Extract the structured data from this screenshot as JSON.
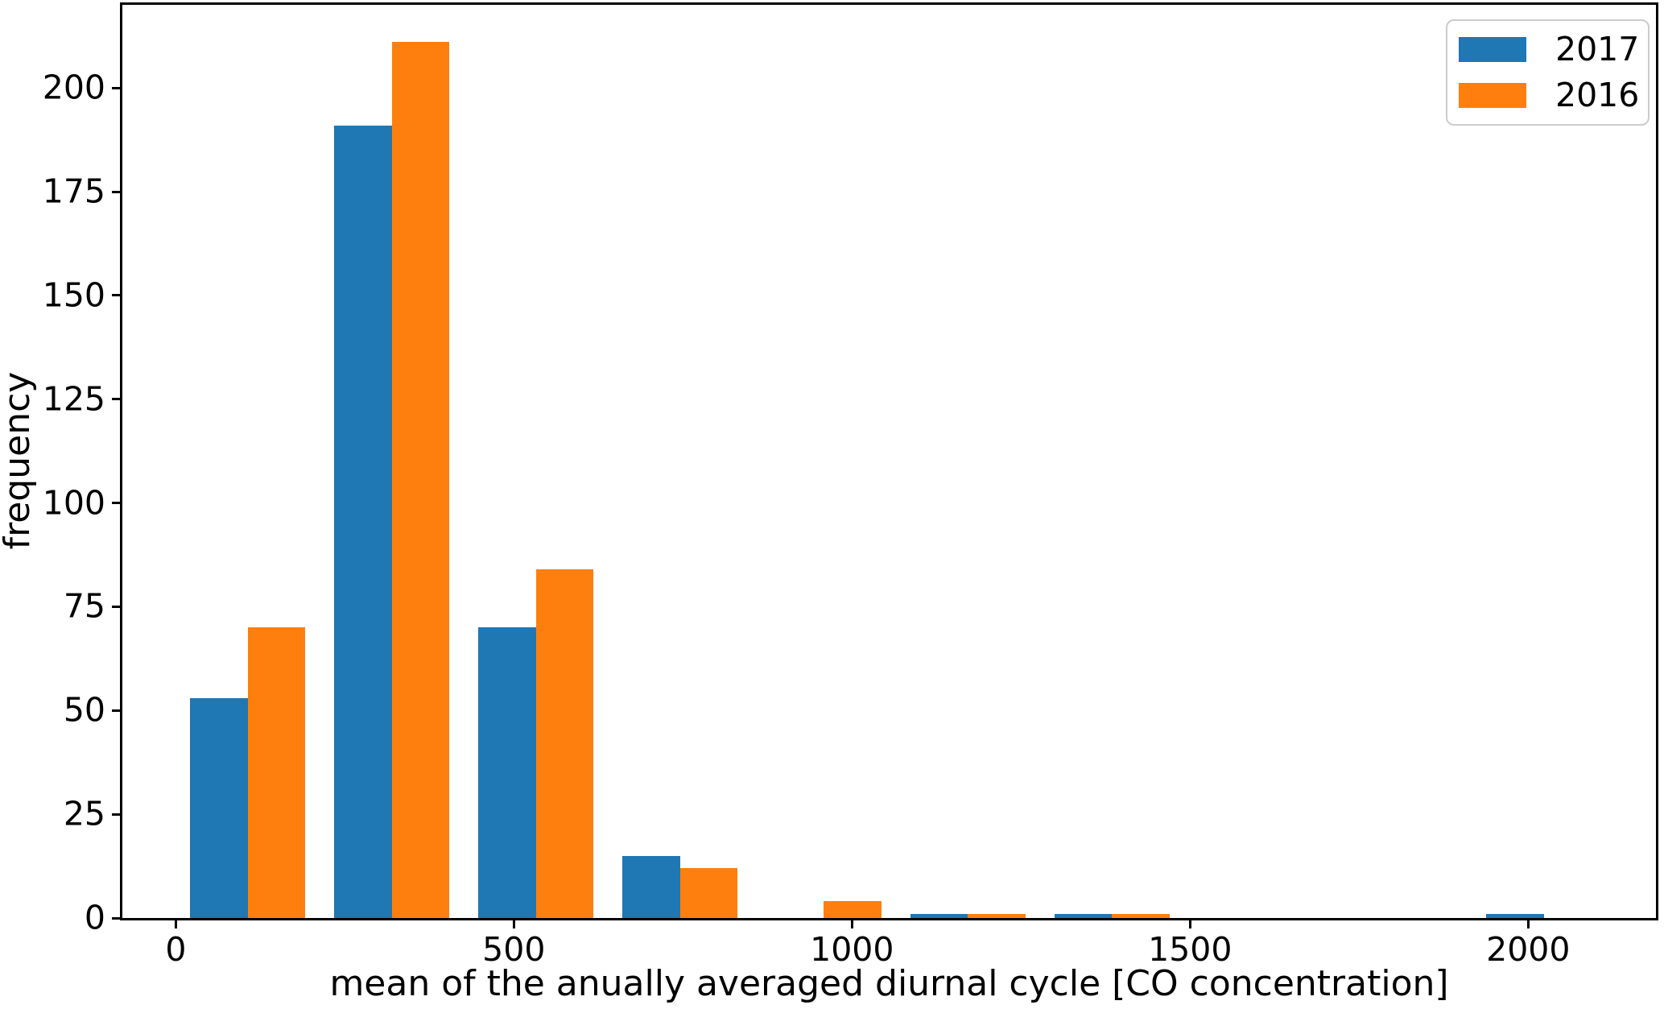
{
  "chart_data": {
    "type": "bar",
    "variant": "grouped-histogram",
    "title": "",
    "xlabel": "mean of the anually averaged diurnal cycle [CO concentration]",
    "ylabel": "frequency",
    "bin_edges": [
      0,
      213,
      426,
      639,
      852,
      1065,
      1278,
      1491,
      1704,
      1917,
      2130
    ],
    "series": [
      {
        "name": "2017",
        "color": "#1f77b4",
        "values": [
          53,
          191,
          70,
          15,
          0,
          1,
          1,
          0,
          0,
          1
        ]
      },
      {
        "name": "2016",
        "color": "#ff7f0e",
        "values": [
          70,
          211,
          84,
          12,
          4,
          1,
          1,
          0,
          0,
          0
        ]
      }
    ],
    "xticks": [
      0,
      500,
      1000,
      1500,
      2000
    ],
    "yticks": [
      0,
      25,
      50,
      75,
      100,
      125,
      150,
      175,
      200
    ],
    "xlim": [
      -79,
      2189
    ],
    "ylim": [
      0,
      220
    ],
    "grid": false,
    "legend": {
      "position": "upper right",
      "entries": [
        "2017",
        "2016"
      ]
    },
    "axis_color": "#000000",
    "background": "#ffffff",
    "group_fill_fraction": 0.8
  }
}
